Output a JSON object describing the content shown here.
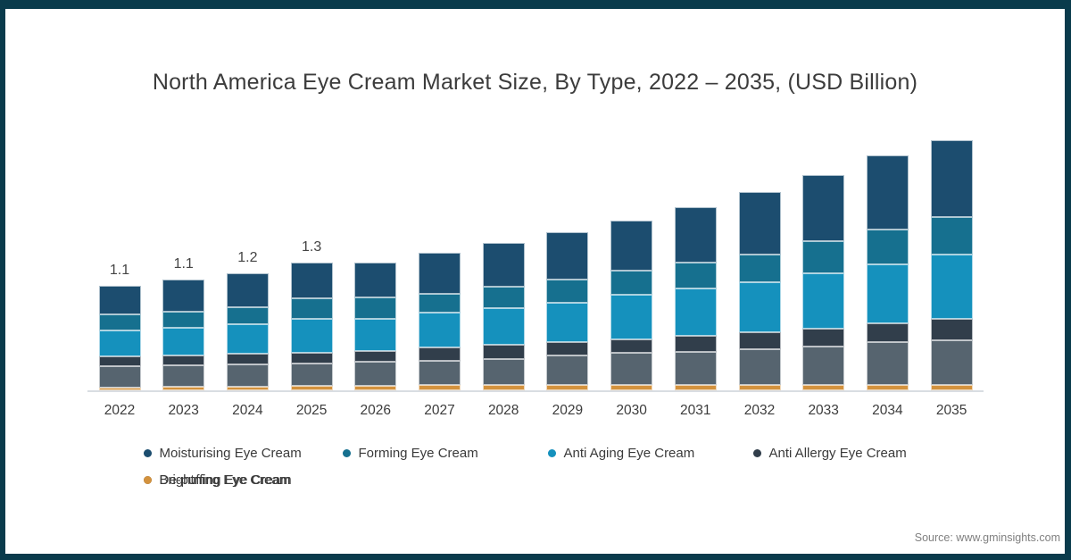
{
  "frame": {
    "border_color": "#0a3b4c"
  },
  "chart_data": {
    "type": "bar",
    "stacked": true,
    "title": "North America Eye Cream Market Size, By Type, 2022 – 2035, (USD Billion)",
    "unit": "USD Billion",
    "categories": [
      "2022",
      "2023",
      "2024",
      "2025",
      "2026",
      "2027",
      "2028",
      "2029",
      "2030",
      "2031",
      "2032",
      "2033",
      "2034",
      "2035"
    ],
    "series": [
      {
        "name": "De-puffing Eye Cream",
        "color": "#d3923e",
        "values": [
          0.03,
          0.035,
          0.04,
          0.042,
          0.048,
          0.051,
          0.051,
          0.058,
          0.056,
          0.051,
          0.054,
          0.054,
          0.054,
          0.06
        ]
      },
      {
        "name": "Brightning Eye Cream",
        "color": "#56646f",
        "values": [
          0.22,
          0.225,
          0.233,
          0.239,
          0.247,
          0.254,
          0.27,
          0.3,
          0.33,
          0.353,
          0.376,
          0.4,
          0.444,
          0.462
        ]
      },
      {
        "name": "Anti Allergy Eye Cream",
        "color": "#313e4b",
        "values": [
          0.1,
          0.1,
          0.109,
          0.108,
          0.118,
          0.14,
          0.149,
          0.142,
          0.146,
          0.165,
          0.177,
          0.19,
          0.202,
          0.223
        ]
      },
      {
        "name": "Anti Aging Eye Cream",
        "color": "#1591bd",
        "values": [
          0.27,
          0.295,
          0.31,
          0.351,
          0.335,
          0.367,
          0.384,
          0.409,
          0.465,
          0.487,
          0.521,
          0.57,
          0.614,
          0.666
        ]
      },
      {
        "name": "Forming Eye Cream",
        "color": "#16708f",
        "values": [
          0.17,
          0.165,
          0.17,
          0.217,
          0.215,
          0.192,
          0.227,
          0.242,
          0.254,
          0.273,
          0.285,
          0.341,
          0.363,
          0.397
        ]
      },
      {
        "name": "Moisturising Eye Cream",
        "color": "#1c4d6f",
        "values": [
          0.3,
          0.33,
          0.357,
          0.372,
          0.365,
          0.428,
          0.456,
          0.5,
          0.52,
          0.58,
          0.651,
          0.688,
          0.766,
          0.8
        ]
      }
    ],
    "legend_order": [
      5,
      4,
      3,
      2,
      1,
      0
    ],
    "bar_labels": [
      "1.1",
      "1.1",
      "1.2",
      "1.3",
      "",
      "",
      "",
      "",
      "",
      "",
      "",
      "",
      "",
      ""
    ],
    "ylim": [
      0,
      2.8
    ],
    "grid": false,
    "legend_position": "bottom"
  },
  "source": {
    "label": "Source: www.gminsights.com"
  }
}
